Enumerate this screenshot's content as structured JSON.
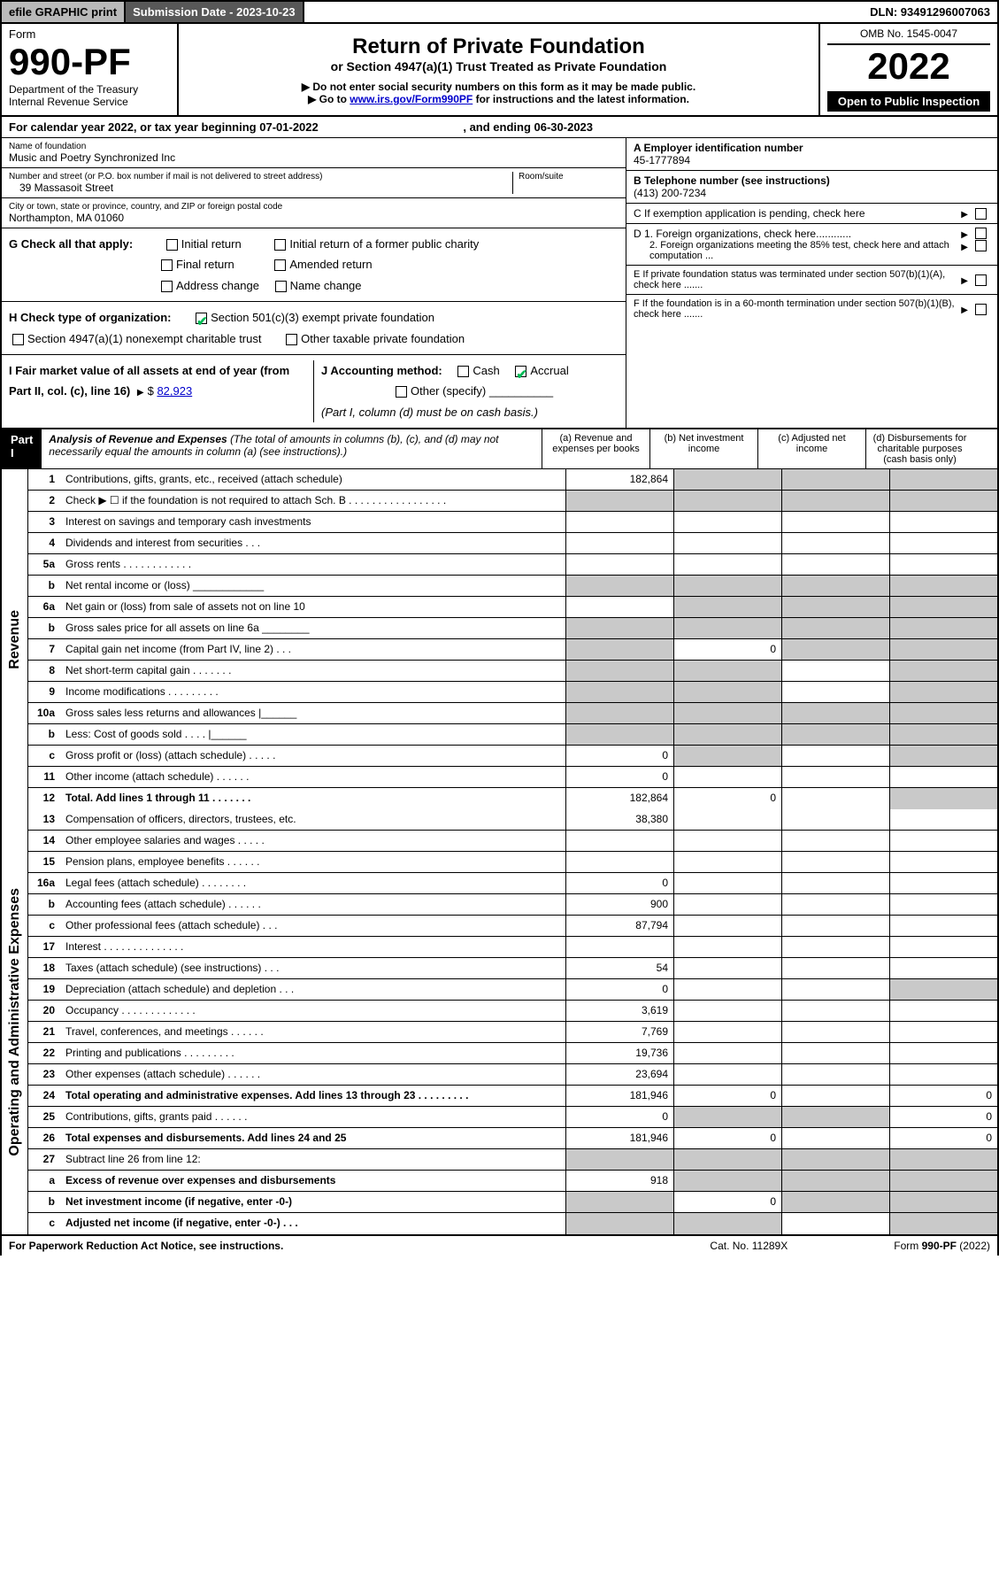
{
  "header": {
    "efile": "efile GRAPHIC print",
    "submission": "Submission Date - 2023-10-23",
    "dln": "DLN: 93491296007063"
  },
  "form": {
    "label": "Form",
    "number": "990-PF",
    "dept1": "Department of the Treasury",
    "dept2": "Internal Revenue Service"
  },
  "title": {
    "main": "Return of Private Foundation",
    "sub": "or Section 4947(a)(1) Trust Treated as Private Foundation",
    "note1": "▶ Do not enter social security numbers on this form as it may be made public.",
    "note2_pre": "▶ Go to ",
    "note2_link": "www.irs.gov/Form990PF",
    "note2_post": " for instructions and the latest information."
  },
  "year_block": {
    "omb": "OMB No. 1545-0047",
    "year": "2022",
    "inspect": "Open to Public Inspection"
  },
  "calendar": {
    "text_pre": "For calendar year 2022, or tax year beginning ",
    "begin": "07-01-2022",
    "mid": " , and ending ",
    "end": "06-30-2023"
  },
  "nameaddr": {
    "name_lbl": "Name of foundation",
    "name": "Music and Poetry Synchronized Inc",
    "street_lbl": "Number and street (or P.O. box number if mail is not delivered to street address)",
    "street": "39 Massasoit Street",
    "room_lbl": "Room/suite",
    "city_lbl": "City or town, state or province, country, and ZIP or foreign postal code",
    "city": "Northampton, MA  01060"
  },
  "ein": {
    "lbl": "A Employer identification number",
    "val": "45-1777894"
  },
  "phone": {
    "lbl": "B Telephone number (see instructions)",
    "val": "(413) 200-7234"
  },
  "c_lbl": "C If exemption application is pending, check here",
  "d1": "D 1. Foreign organizations, check here............",
  "d2": "2. Foreign organizations meeting the 85% test, check here and attach computation ...",
  "e_lbl": "E If private foundation status was terminated under section 507(b)(1)(A), check here .......",
  "f_lbl": "F If the foundation is in a 60-month termination under section 507(b)(1)(B), check here .......",
  "g": {
    "lbl": "G Check all that apply:",
    "opts": [
      "Initial return",
      "Final return",
      "Address change",
      "Initial return of a former public charity",
      "Amended return",
      "Name change"
    ]
  },
  "h": {
    "lbl": "H Check type of organization:",
    "o1": "Section 501(c)(3) exempt private foundation",
    "o2": "Section 4947(a)(1) nonexempt charitable trust",
    "o3": "Other taxable private foundation"
  },
  "i": {
    "lbl": "I Fair market value of all assets at end of year (from Part II, col. (c), line 16)",
    "val": "82,923"
  },
  "j": {
    "lbl": "J Accounting method:",
    "cash": "Cash",
    "accrual": "Accrual",
    "other": "Other (specify)",
    "note": "(Part I, column (d) must be on cash basis.)"
  },
  "part1": {
    "hdr": "Part I",
    "title": "Analysis of Revenue and Expenses",
    "note": "(The total of amounts in columns (b), (c), and (d) may not necessarily equal the amounts in column (a) (see instructions).)",
    "cols": {
      "a": "(a) Revenue and expenses per books",
      "b": "(b) Net investment income",
      "c": "(c) Adjusted net income",
      "d": "(d) Disbursements for charitable purposes (cash basis only)"
    }
  },
  "side_labels": {
    "rev": "Revenue",
    "oae": "Operating and Administrative Expenses"
  },
  "rows": [
    {
      "n": "1",
      "d": "Contributions, gifts, grants, etc., received (attach schedule)",
      "a": "182,864",
      "shadeBCD": true
    },
    {
      "n": "2",
      "d": "Check ▶ ☐ if the foundation is not required to attach Sch. B  . . . . . . . . . . . . . . . . .",
      "allShade": true
    },
    {
      "n": "3",
      "d": "Interest on savings and temporary cash investments"
    },
    {
      "n": "4",
      "d": "Dividends and interest from securities   .  .  ."
    },
    {
      "n": "5a",
      "d": "Gross rents   .  .  .  .  .  .  .  .  .  .  .  ."
    },
    {
      "n": "b",
      "d": "Net rental income or (loss)  ____________",
      "shadeBCD": true,
      "shadeA": true
    },
    {
      "n": "6a",
      "d": "Net gain or (loss) from sale of assets not on line 10",
      "shadeBCD": true
    },
    {
      "n": "b",
      "d": "Gross sales price for all assets on line 6a ________",
      "allShade": true
    },
    {
      "n": "7",
      "d": "Capital gain net income (from Part IV, line 2)  .  .  .",
      "b": "0",
      "shadeA": true,
      "shadeCD": true
    },
    {
      "n": "8",
      "d": "Net short-term capital gain  .  .  .  .  .  .  .",
      "shadeA": true,
      "shadeB": true,
      "shadeD": true
    },
    {
      "n": "9",
      "d": "Income modifications  .  .  .  .  .  .  .  .  .",
      "shadeA": true,
      "shadeB": true,
      "shadeD": true
    },
    {
      "n": "10a",
      "d": "Gross sales less returns and allowances   |______",
      "allShade": true
    },
    {
      "n": "b",
      "d": "Less: Cost of goods sold   .  .  .  .   |______",
      "allShade": true
    },
    {
      "n": "c",
      "d": "Gross profit or (loss) (attach schedule)   .  .  .  .  .",
      "a": "0",
      "shadeB": true,
      "shadeD": true
    },
    {
      "n": "11",
      "d": "Other income (attach schedule)  .  .  .  .  .  .",
      "a": "0"
    },
    {
      "n": "12",
      "d": "Total. Add lines 1 through 11  .  .  .  .  .  .  .",
      "a": "182,864",
      "b": "0",
      "bold": true,
      "shadeD": true
    },
    {
      "n": "13",
      "d": "Compensation of officers, directors, trustees, etc.",
      "a": "38,380"
    },
    {
      "n": "14",
      "d": "Other employee salaries and wages  .  .  .  .  ."
    },
    {
      "n": "15",
      "d": "Pension plans, employee benefits  .  .  .  .  .  ."
    },
    {
      "n": "16a",
      "d": "Legal fees (attach schedule)  .  .  .  .  .  .  .  .",
      "a": "0"
    },
    {
      "n": "b",
      "d": "Accounting fees (attach schedule)  .  .  .  .  .  .",
      "a": "900"
    },
    {
      "n": "c",
      "d": "Other professional fees (attach schedule)  .  .  .",
      "a": "87,794"
    },
    {
      "n": "17",
      "d": "Interest  .  .  .  .  .  .  .  .  .  .  .  .  .  ."
    },
    {
      "n": "18",
      "d": "Taxes (attach schedule) (see instructions)  .  .  .",
      "a": "54"
    },
    {
      "n": "19",
      "d": "Depreciation (attach schedule) and depletion  .  .  .",
      "a": "0",
      "shadeD": true
    },
    {
      "n": "20",
      "d": "Occupancy  .  .  .  .  .  .  .  .  .  .  .  .  .",
      "a": "3,619"
    },
    {
      "n": "21",
      "d": "Travel, conferences, and meetings  .  .  .  .  .  .",
      "a": "7,769"
    },
    {
      "n": "22",
      "d": "Printing and publications  .  .  .  .  .  .  .  .  .",
      "a": "19,736"
    },
    {
      "n": "23",
      "d": "Other expenses (attach schedule)  .  .  .  .  .  .",
      "a": "23,694"
    },
    {
      "n": "24",
      "d": "Total operating and administrative expenses. Add lines 13 through 23  .  .  .  .  .  .  .  .  .",
      "a": "181,946",
      "b": "0",
      "dd": "0",
      "bold": true
    },
    {
      "n": "25",
      "d": "Contributions, gifts, grants paid  .  .  .  .  .  .",
      "a": "0",
      "dd": "0",
      "shadeBC": true
    },
    {
      "n": "26",
      "d": "Total expenses and disbursements. Add lines 24 and 25",
      "a": "181,946",
      "b": "0",
      "dd": "0",
      "bold": true
    },
    {
      "n": "27",
      "d": "Subtract line 26 from line 12:",
      "allShade": true
    },
    {
      "n": "a",
      "d": "Excess of revenue over expenses and disbursements",
      "a": "918",
      "bold": true,
      "shadeBCD": true
    },
    {
      "n": "b",
      "d": "Net investment income (if negative, enter -0-)",
      "b": "0",
      "bold": true,
      "shadeA": true,
      "shadeCD": true
    },
    {
      "n": "c",
      "d": "Adjusted net income (if negative, enter -0-)  .  .  .",
      "bold": true,
      "shadeA": true,
      "shadeB": true,
      "shadeD": true
    }
  ],
  "footer": {
    "left": "For Paperwork Reduction Act Notice, see instructions.",
    "mid": "Cat. No. 11289X",
    "right": "Form 990-PF (2022)"
  }
}
